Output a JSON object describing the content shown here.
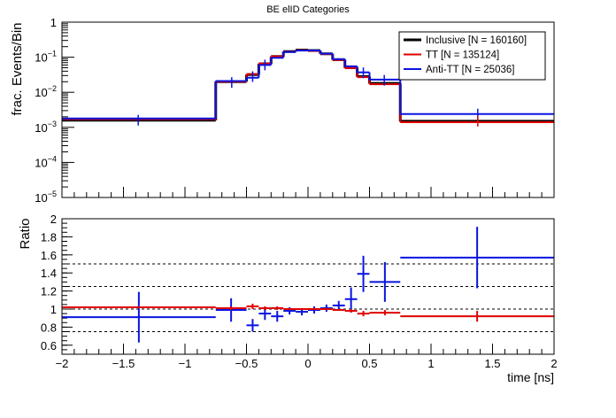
{
  "title": "BE elID Categories",
  "colors": {
    "inclusive": "#000000",
    "tt": "#e00000",
    "antitt": "#0a14e0"
  },
  "chart_data": [
    {
      "type": "line",
      "subtype": "step",
      "title": "BE elID Categories",
      "xlabel": "",
      "ylabel": "frac. Events/Bin",
      "ylog": true,
      "xlim": [
        -2,
        2
      ],
      "ylim": [
        1e-05,
        1
      ],
      "yticks": [
        {
          "v": 1,
          "base": "1",
          "exp": ""
        },
        {
          "v": 0.1,
          "base": "10",
          "exp": "−1"
        },
        {
          "v": 0.01,
          "base": "10",
          "exp": "−2"
        },
        {
          "v": 0.001,
          "base": "10",
          "exp": "−3"
        },
        {
          "v": 0.0001,
          "base": "10",
          "exp": "−4"
        },
        {
          "v": 1e-05,
          "base": "10",
          "exp": "−5"
        }
      ],
      "bin_edges": [
        -2,
        -0.75,
        -0.5,
        -0.4,
        -0.3,
        -0.2,
        -0.1,
        0,
        0.1,
        0.2,
        0.3,
        0.4,
        0.5,
        0.75,
        2
      ],
      "legend": "top-right",
      "series": [
        {
          "key": "inclusive",
          "name": "Inclusive [N = 160160]",
          "values": [
            0.0016,
            0.02,
            0.032,
            0.065,
            0.105,
            0.145,
            0.16,
            0.155,
            0.125,
            0.085,
            0.05,
            0.028,
            0.018,
            0.0015
          ]
        },
        {
          "key": "tt",
          "name": "TT [N = 135124]",
          "values": [
            0.0017,
            0.02,
            0.033,
            0.066,
            0.106,
            0.143,
            0.158,
            0.152,
            0.123,
            0.083,
            0.049,
            0.027,
            0.017,
            0.0014
          ]
        },
        {
          "key": "antitt",
          "name": "Anti-TT [N = 25036]",
          "values": [
            0.0018,
            0.021,
            0.026,
            0.06,
            0.096,
            0.141,
            0.155,
            0.156,
            0.126,
            0.088,
            0.055,
            0.037,
            0.023,
            0.0024
          ]
        }
      ],
      "points": [
        {
          "x": -1.38,
          "y": 0.0016,
          "key": "antitt"
        },
        {
          "x": -0.62,
          "y": 0.019,
          "key": "antitt"
        },
        {
          "x": -0.45,
          "y": 0.028,
          "key": "antitt"
        },
        {
          "x": -0.35,
          "y": 0.06,
          "key": "antitt"
        },
        {
          "x": 0.45,
          "y": 0.036,
          "key": "antitt"
        },
        {
          "x": 0.62,
          "y": 0.022,
          "key": "antitt"
        },
        {
          "x": 1.38,
          "y": 0.0024,
          "key": "antitt"
        },
        {
          "x": 1.38,
          "y": 0.0015,
          "key": "tt"
        }
      ]
    },
    {
      "type": "scatter",
      "subtype": "errorbar",
      "xlabel": "time [ns]",
      "ylabel": "Ratio",
      "xlim": [
        -2,
        2
      ],
      "ylim": [
        0.5,
        2
      ],
      "xticks": [
        "−2",
        "−1.5",
        "−1",
        "−0.5",
        "0",
        "0.5",
        "1",
        "1.5",
        "2"
      ],
      "yticks": [
        "0.6",
        "0.8",
        "1",
        "1.2",
        "1.4",
        "1.6",
        "1.8",
        "2"
      ],
      "reference_lines": [
        0.75,
        1.0,
        1.25,
        1.5
      ],
      "series": [
        {
          "key": "antitt",
          "name": "Anti-TT",
          "points": [
            {
              "x": -1.375,
              "xerr": 0.625,
              "y": 0.91,
              "yerr": 0.28
            },
            {
              "x": -0.625,
              "xerr": 0.125,
              "y": 0.99,
              "yerr": 0.13
            },
            {
              "x": -0.45,
              "xerr": 0.05,
              "y": 0.82,
              "yerr": 0.07
            },
            {
              "x": -0.35,
              "xerr": 0.05,
              "y": 0.95,
              "yerr": 0.07
            },
            {
              "x": -0.25,
              "xerr": 0.05,
              "y": 0.92,
              "yerr": 0.06
            },
            {
              "x": -0.15,
              "xerr": 0.05,
              "y": 0.98,
              "yerr": 0.04
            },
            {
              "x": -0.05,
              "xerr": 0.05,
              "y": 0.97,
              "yerr": 0.04
            },
            {
              "x": 0.05,
              "xerr": 0.05,
              "y": 0.99,
              "yerr": 0.04
            },
            {
              "x": 0.15,
              "xerr": 0.05,
              "y": 1.01,
              "yerr": 0.04
            },
            {
              "x": 0.25,
              "xerr": 0.05,
              "y": 1.04,
              "yerr": 0.05
            },
            {
              "x": 0.35,
              "xerr": 0.05,
              "y": 1.11,
              "yerr": 0.13
            },
            {
              "x": 0.45,
              "xerr": 0.05,
              "y": 1.39,
              "yerr": 0.2
            },
            {
              "x": 0.625,
              "xerr": 0.125,
              "y": 1.3,
              "yerr": 0.22
            },
            {
              "x": 1.375,
              "xerr": 0.625,
              "y": 1.57,
              "yerr": 0.34
            }
          ]
        },
        {
          "key": "tt",
          "name": "TT",
          "points": [
            {
              "x": -1.375,
              "xerr": 0.625,
              "y": 1.02,
              "yerr": 0.01
            },
            {
              "x": -0.625,
              "xerr": 0.125,
              "y": 1.01,
              "yerr": 0.02
            },
            {
              "x": -0.45,
              "xerr": 0.05,
              "y": 1.03,
              "yerr": 0.03
            },
            {
              "x": -0.35,
              "xerr": 0.05,
              "y": 1.01,
              "yerr": 0.02
            },
            {
              "x": -0.25,
              "xerr": 0.05,
              "y": 1.01,
              "yerr": 0.02
            },
            {
              "x": -0.15,
              "xerr": 0.05,
              "y": 1.0,
              "yerr": 0.01
            },
            {
              "x": -0.05,
              "xerr": 0.05,
              "y": 1.0,
              "yerr": 0.01
            },
            {
              "x": 0.05,
              "xerr": 0.05,
              "y": 1.0,
              "yerr": 0.01
            },
            {
              "x": 0.15,
              "xerr": 0.05,
              "y": 1.0,
              "yerr": 0.01
            },
            {
              "x": 0.25,
              "xerr": 0.05,
              "y": 0.99,
              "yerr": 0.01
            },
            {
              "x": 0.35,
              "xerr": 0.05,
              "y": 0.98,
              "yerr": 0.02
            },
            {
              "x": 0.45,
              "xerr": 0.05,
              "y": 0.95,
              "yerr": 0.03
            },
            {
              "x": 0.625,
              "xerr": 0.125,
              "y": 0.96,
              "yerr": 0.03
            },
            {
              "x": 1.375,
              "xerr": 0.625,
              "y": 0.92,
              "yerr": 0.06
            }
          ]
        }
      ]
    }
  ]
}
